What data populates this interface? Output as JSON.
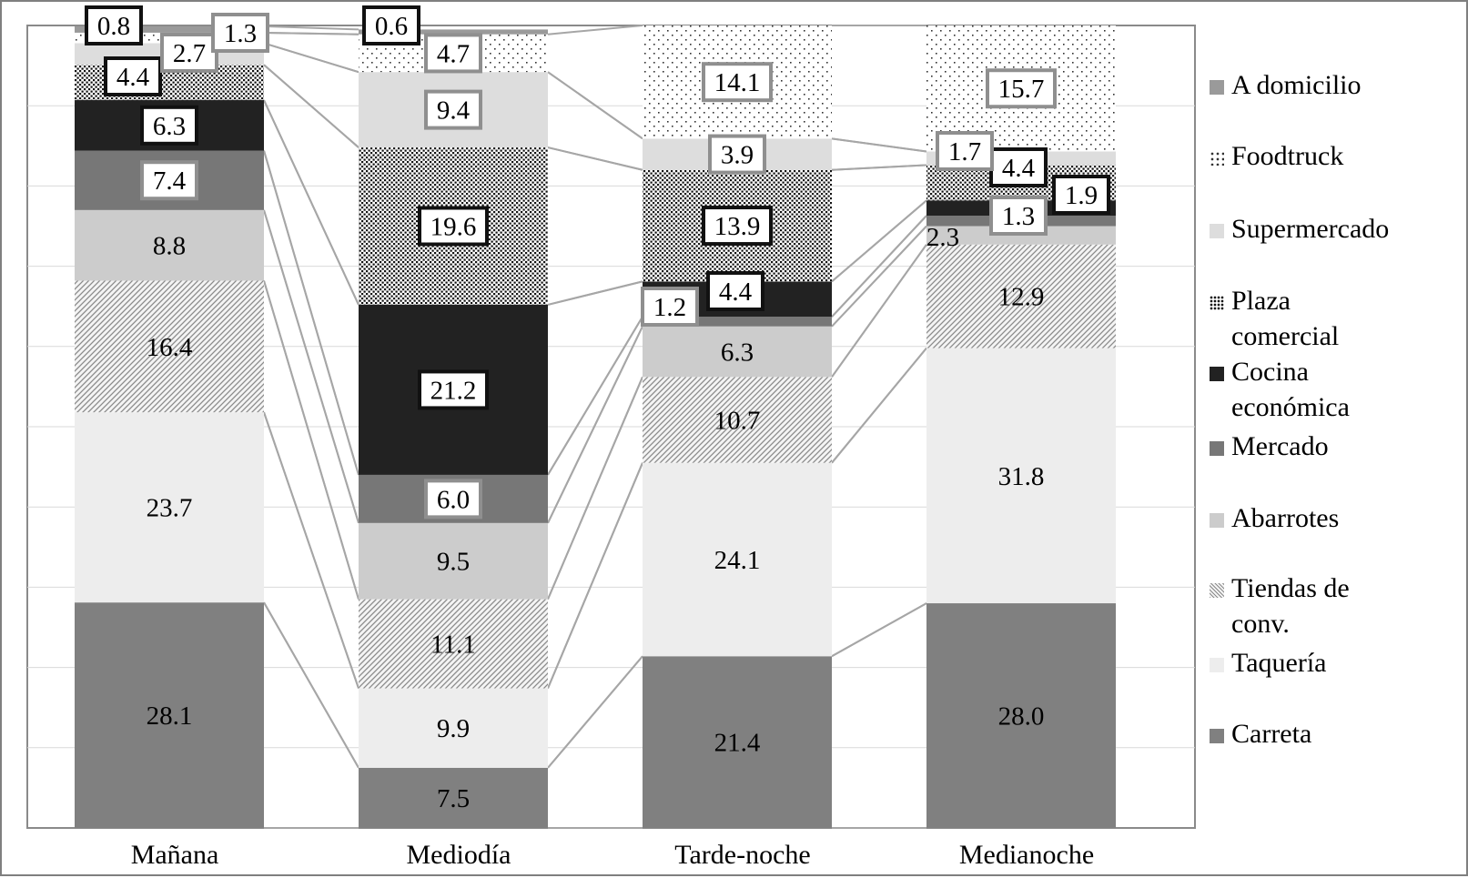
{
  "chart_data": {
    "type": "bar",
    "stacked": true,
    "categories": [
      "Mañana",
      "Mediodía",
      "Tarde-noche",
      "Medianoche"
    ],
    "series": [
      {
        "name": "Carreta",
        "values": [
          28.1,
          7.5,
          21.4,
          28.0
        ],
        "labels": [
          "28.1",
          "7.5",
          "21.4",
          "28.0"
        ],
        "color": "#808080",
        "pattern": "solid"
      },
      {
        "name": "Taquería",
        "values": [
          23.7,
          9.9,
          24.1,
          31.8
        ],
        "labels": [
          "23.7",
          "9.9",
          "24.1",
          "31.8"
        ],
        "color": "#ededed",
        "pattern": "solid"
      },
      {
        "name": "Tiendas de conv.",
        "values": [
          16.4,
          11.1,
          10.7,
          12.9
        ],
        "labels": [
          "16.4",
          "11.1",
          "10.7",
          "12.9"
        ],
        "color": "#bdbdbd",
        "pattern": "diagonal"
      },
      {
        "name": "Abarrotes",
        "values": [
          8.8,
          9.5,
          6.3,
          2.3
        ],
        "labels": [
          "8.8",
          "9.5",
          "6.3",
          "2.3"
        ],
        "color": "#cccccc",
        "pattern": "solid"
      },
      {
        "name": "Mercado",
        "values": [
          7.4,
          6.0,
          1.2,
          1.3
        ],
        "labels": [
          "7.4",
          "6.0",
          "1.2",
          "1.3"
        ],
        "color": "#777777",
        "pattern": "solid"
      },
      {
        "name": "Cocina económica",
        "values": [
          6.3,
          21.2,
          4.4,
          1.9
        ],
        "labels": [
          "6.3",
          "21.2",
          "4.4",
          "1.9"
        ],
        "color": "#222222",
        "pattern": "solid"
      },
      {
        "name": "Plaza comercial",
        "values": [
          4.4,
          19.6,
          13.9,
          4.4
        ],
        "labels": [
          "4.4",
          "19.6",
          "13.9",
          "4.4"
        ],
        "color": "#555555",
        "pattern": "dense-dots"
      },
      {
        "name": "Supermercado",
        "values": [
          2.7,
          9.4,
          3.9,
          1.7
        ],
        "labels": [
          "2.7",
          "9.4",
          "3.9",
          "1.7"
        ],
        "color": "#dddddd",
        "pattern": "solid"
      },
      {
        "name": "Foodtruck",
        "values": [
          1.3,
          4.7,
          14.1,
          15.7
        ],
        "labels": [
          "1.3",
          "4.7",
          "14.1",
          "15.7"
        ],
        "color": "#aaaaaa",
        "pattern": "sparse-dots"
      },
      {
        "name": "A domicilio",
        "values": [
          0.8,
          0.6,
          0.0,
          0.0
        ],
        "labels": [
          "0.8",
          "0.6",
          "",
          ""
        ],
        "color": "#9a9a9a",
        "pattern": "solid"
      }
    ],
    "legend": {
      "position": "right",
      "entries": [
        {
          "label": "A domicilio",
          "lines": [
            "A domicilio"
          ]
        },
        {
          "label": "Foodtruck",
          "lines": [
            "Foodtruck"
          ]
        },
        {
          "label": "Supermercado",
          "lines": [
            "Supermercado"
          ]
        },
        {
          "label": "Plaza comercial",
          "lines": [
            "Plaza",
            "comercial"
          ]
        },
        {
          "label": "Cocina económica",
          "lines": [
            "Cocina",
            "económica"
          ]
        },
        {
          "label": "Mercado",
          "lines": [
            "Mercado"
          ]
        },
        {
          "label": "Abarrotes",
          "lines": [
            "Abarrotes"
          ]
        },
        {
          "label": "Tiendas de conv.",
          "lines": [
            "Tiendas de",
            "conv."
          ]
        },
        {
          "label": "Taquería",
          "lines": [
            "Taquería"
          ]
        },
        {
          "label": "Carreta",
          "lines": [
            "Carreta"
          ]
        }
      ]
    },
    "ylim": [
      0,
      100
    ],
    "grid": true,
    "connector_lines": true,
    "title": "",
    "xlabel": "",
    "ylabel": ""
  }
}
